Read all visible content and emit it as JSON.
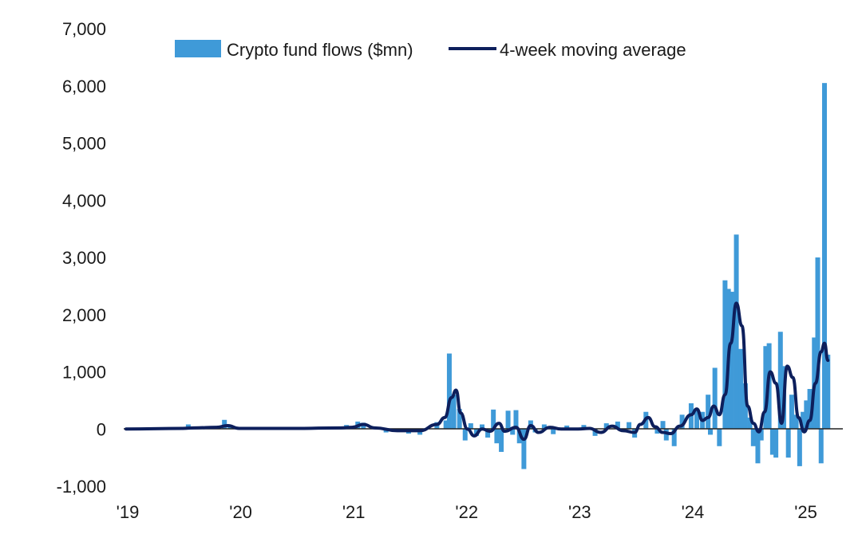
{
  "chart_data": {
    "type": "bar",
    "title": "",
    "xlabel": "",
    "ylabel": "",
    "ylim": [
      -1000,
      7000
    ],
    "y_ticks": [
      7000,
      6000,
      5000,
      4000,
      3000,
      2000,
      1000,
      0,
      -1000
    ],
    "y_tick_labels": [
      "7,000",
      "6,000",
      "5,000",
      "4,000",
      "3,000",
      "2,000",
      "1,000",
      "0",
      "-1,000"
    ],
    "x_range": [
      2019.0,
      2025.3
    ],
    "x_ticks": [
      2019,
      2020,
      2021,
      2022,
      2023,
      2024,
      2025
    ],
    "x_tick_labels": [
      "'19",
      "'20",
      "'21",
      "'22",
      "'23",
      "'24",
      "'25"
    ],
    "legend": {
      "position": "top-center",
      "entries": [
        "Crypto fund flows ($mn)",
        "4-week moving average"
      ]
    },
    "colors": {
      "bars": "#3f9ad8",
      "line": "#0d1f5c",
      "axis": "#222222"
    },
    "series": [
      {
        "name": "Crypto fund flows ($mn)",
        "kind": "bar",
        "points": [
          [
            2019.55,
            80
          ],
          [
            2019.87,
            160
          ],
          [
            2019.92,
            60
          ],
          [
            2020.95,
            70
          ],
          [
            2021.05,
            130
          ],
          [
            2021.1,
            110
          ],
          [
            2021.3,
            -60
          ],
          [
            2021.5,
            -80
          ],
          [
            2021.6,
            -100
          ],
          [
            2021.75,
            120
          ],
          [
            2021.83,
            150
          ],
          [
            2021.86,
            1320
          ],
          [
            2021.9,
            600
          ],
          [
            2021.95,
            350
          ],
          [
            2022.0,
            -200
          ],
          [
            2022.05,
            100
          ],
          [
            2022.1,
            -120
          ],
          [
            2022.15,
            80
          ],
          [
            2022.2,
            -150
          ],
          [
            2022.25,
            340
          ],
          [
            2022.28,
            -250
          ],
          [
            2022.32,
            -400
          ],
          [
            2022.38,
            320
          ],
          [
            2022.42,
            -100
          ],
          [
            2022.45,
            330
          ],
          [
            2022.48,
            -250
          ],
          [
            2022.52,
            -700
          ],
          [
            2022.58,
            150
          ],
          [
            2022.62,
            -60
          ],
          [
            2022.7,
            80
          ],
          [
            2022.78,
            -90
          ],
          [
            2022.9,
            60
          ],
          [
            2023.05,
            70
          ],
          [
            2023.15,
            -120
          ],
          [
            2023.25,
            100
          ],
          [
            2023.35,
            130
          ],
          [
            2023.45,
            120
          ],
          [
            2023.5,
            -150
          ],
          [
            2023.6,
            300
          ],
          [
            2023.7,
            -80
          ],
          [
            2023.75,
            140
          ],
          [
            2023.78,
            -200
          ],
          [
            2023.85,
            -300
          ],
          [
            2023.92,
            250
          ],
          [
            2024.0,
            450
          ],
          [
            2024.05,
            350
          ],
          [
            2024.1,
            300
          ],
          [
            2024.15,
            600
          ],
          [
            2024.17,
            -100
          ],
          [
            2024.21,
            1070
          ],
          [
            2024.25,
            -300
          ],
          [
            2024.3,
            2600
          ],
          [
            2024.33,
            2450
          ],
          [
            2024.36,
            2400
          ],
          [
            2024.4,
            3400
          ],
          [
            2024.44,
            1400
          ],
          [
            2024.48,
            800
          ],
          [
            2024.52,
            200
          ],
          [
            2024.55,
            -300
          ],
          [
            2024.59,
            -600
          ],
          [
            2024.62,
            -200
          ],
          [
            2024.66,
            1450
          ],
          [
            2024.69,
            1500
          ],
          [
            2024.72,
            -450
          ],
          [
            2024.75,
            -500
          ],
          [
            2024.79,
            1700
          ],
          [
            2024.82,
            1100
          ],
          [
            2024.86,
            -500
          ],
          [
            2024.89,
            600
          ],
          [
            2024.93,
            250
          ],
          [
            2024.96,
            -650
          ],
          [
            2024.99,
            300
          ],
          [
            2025.02,
            500
          ],
          [
            2025.05,
            700
          ],
          [
            2025.09,
            1600
          ],
          [
            2025.12,
            3000
          ],
          [
            2025.15,
            -600
          ],
          [
            2025.18,
            6050
          ],
          [
            2025.21,
            1300
          ]
        ]
      },
      {
        "name": "4-week moving average",
        "kind": "line",
        "points": [
          [
            2019.0,
            0
          ],
          [
            2019.5,
            10
          ],
          [
            2019.6,
            20
          ],
          [
            2019.8,
            30
          ],
          [
            2019.9,
            60
          ],
          [
            2020.0,
            10
          ],
          [
            2020.5,
            10
          ],
          [
            2020.9,
            20
          ],
          [
            2021.0,
            30
          ],
          [
            2021.1,
            80
          ],
          [
            2021.2,
            20
          ],
          [
            2021.4,
            -30
          ],
          [
            2021.6,
            -30
          ],
          [
            2021.75,
            80
          ],
          [
            2021.82,
            200
          ],
          [
            2021.88,
            550
          ],
          [
            2021.92,
            680
          ],
          [
            2021.96,
            280
          ],
          [
            2022.02,
            0
          ],
          [
            2022.08,
            -120
          ],
          [
            2022.15,
            0
          ],
          [
            2022.22,
            -40
          ],
          [
            2022.3,
            100
          ],
          [
            2022.35,
            -40
          ],
          [
            2022.45,
            30
          ],
          [
            2022.52,
            -180
          ],
          [
            2022.58,
            60
          ],
          [
            2022.65,
            -60
          ],
          [
            2022.75,
            30
          ],
          [
            2022.85,
            0
          ],
          [
            2023.0,
            0
          ],
          [
            2023.1,
            10
          ],
          [
            2023.2,
            -60
          ],
          [
            2023.3,
            50
          ],
          [
            2023.4,
            -30
          ],
          [
            2023.5,
            -60
          ],
          [
            2023.55,
            80
          ],
          [
            2023.62,
            200
          ],
          [
            2023.68,
            40
          ],
          [
            2023.75,
            -60
          ],
          [
            2023.82,
            -80
          ],
          [
            2023.9,
            50
          ],
          [
            2024.0,
            250
          ],
          [
            2024.05,
            350
          ],
          [
            2024.1,
            150
          ],
          [
            2024.15,
            200
          ],
          [
            2024.2,
            400
          ],
          [
            2024.25,
            250
          ],
          [
            2024.3,
            600
          ],
          [
            2024.35,
            1500
          ],
          [
            2024.4,
            2200
          ],
          [
            2024.45,
            1800
          ],
          [
            2024.5,
            400
          ],
          [
            2024.55,
            100
          ],
          [
            2024.6,
            -50
          ],
          [
            2024.65,
            300
          ],
          [
            2024.7,
            1000
          ],
          [
            2024.75,
            800
          ],
          [
            2024.8,
            100
          ],
          [
            2024.85,
            1100
          ],
          [
            2024.9,
            900
          ],
          [
            2024.95,
            200
          ],
          [
            2025.0,
            -50
          ],
          [
            2025.05,
            150
          ],
          [
            2025.1,
            800
          ],
          [
            2025.15,
            1350
          ],
          [
            2025.18,
            1500
          ],
          [
            2025.21,
            1200
          ]
        ]
      }
    ]
  }
}
